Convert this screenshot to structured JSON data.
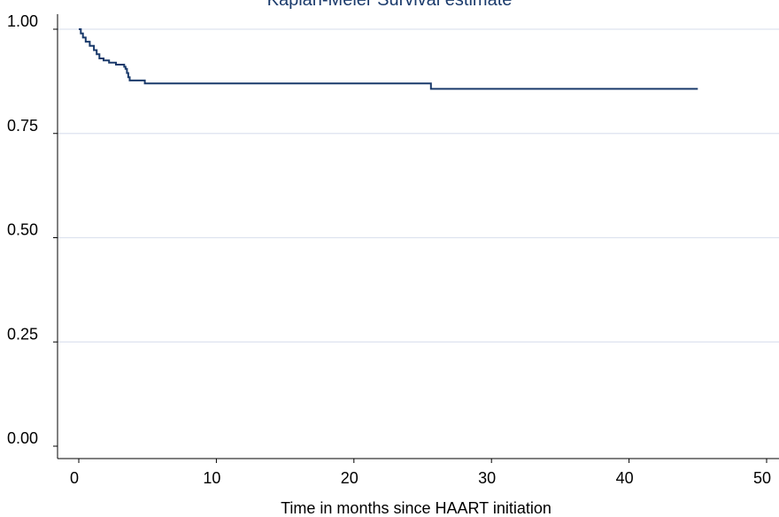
{
  "chart_data": {
    "type": "line",
    "title": "Kaplan-Meier Survival estimate",
    "xlabel": "Time in months since HAART initiation",
    "ylabel": "",
    "xlim": [
      0,
      50
    ],
    "ylim": [
      0,
      1
    ],
    "x_ticks": [
      "0",
      "10",
      "20",
      "30",
      "40",
      "50"
    ],
    "y_ticks": [
      "0.00",
      "0.25",
      "0.50",
      "0.75",
      "1.00"
    ],
    "grid": true,
    "legend": "none",
    "line_color": "#1a3a6b",
    "series": [
      {
        "step": true,
        "points": [
          [
            0,
            1.0
          ],
          [
            0.15,
            0.99
          ],
          [
            0.3,
            0.98
          ],
          [
            0.5,
            0.97
          ],
          [
            0.8,
            0.96
          ],
          [
            1.1,
            0.95
          ],
          [
            1.3,
            0.94
          ],
          [
            1.5,
            0.93
          ],
          [
            1.8,
            0.925
          ],
          [
            2.2,
            0.92
          ],
          [
            2.7,
            0.915
          ],
          [
            3.3,
            0.91
          ],
          [
            3.4,
            0.905
          ],
          [
            3.5,
            0.895
          ],
          [
            3.6,
            0.885
          ],
          [
            3.7,
            0.877
          ],
          [
            4.8,
            0.87
          ],
          [
            25.6,
            0.857
          ],
          [
            45.0,
            0.857
          ]
        ]
      }
    ]
  }
}
